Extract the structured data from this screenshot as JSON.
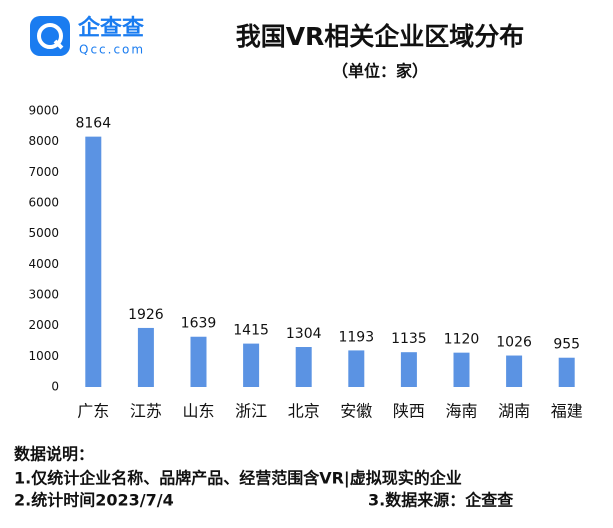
{
  "logo": {
    "name": "企查查",
    "domain": "Qcc.com"
  },
  "chart_data": {
    "type": "bar",
    "title": "我国VR相关企业区域分布",
    "subtitle": "（单位：家）",
    "categories": [
      "广东",
      "江苏",
      "山东",
      "浙江",
      "北京",
      "安徽",
      "陕西",
      "海南",
      "湖南",
      "福建"
    ],
    "values": [
      8164,
      1926,
      1639,
      1415,
      1304,
      1193,
      1135,
      1120,
      1026,
      955
    ],
    "color": "#5b93e3",
    "ylim": [
      0,
      9000
    ],
    "yticks": [
      0,
      1000,
      2000,
      3000,
      4000,
      5000,
      6000,
      7000,
      8000,
      9000
    ],
    "grid": false
  },
  "notes": {
    "heading": "数据说明：",
    "line1": "1.仅统计企业名称、品牌产品、经营范围含VR|虚拟现实的企业",
    "line2": "2.统计时间2023/7/4",
    "source": "3.数据来源：企查查"
  }
}
